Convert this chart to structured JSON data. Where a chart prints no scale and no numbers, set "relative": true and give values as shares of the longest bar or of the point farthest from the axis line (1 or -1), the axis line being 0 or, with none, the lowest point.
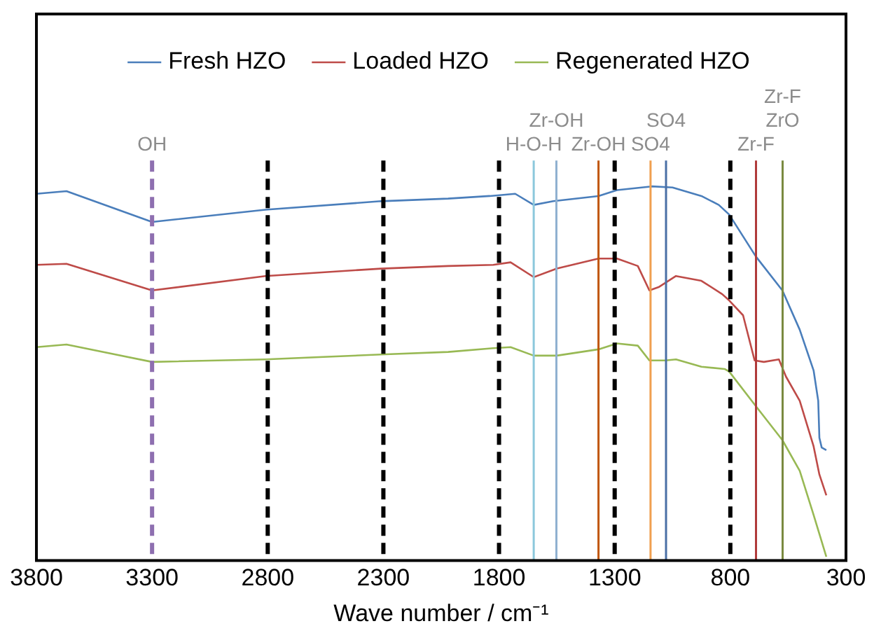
{
  "chart_data": {
    "type": "line",
    "relative": true,
    "xlabel": "Wave number / cm⁻¹",
    "xlim": [
      3800,
      300
    ],
    "xticks": [
      3800,
      3300,
      2800,
      2300,
      1800,
      1300,
      800,
      300
    ],
    "grid": false,
    "legend": "top",
    "marker": "none",
    "line_style": "solid",
    "series": [
      {
        "name": "Fresh HZO",
        "color": "#4a7ebb",
        "x": [
          3800,
          3670,
          3300,
          2810,
          2310,
          2020,
          1840,
          1730,
          1650,
          1565,
          1370,
          1290,
          1140,
          1050,
          925,
          850,
          805,
          690,
          575,
          500,
          440,
          420,
          415,
          405,
          385
        ],
        "values": [
          0.98,
          0.987,
          0.904,
          0.937,
          0.96,
          0.967,
          0.974,
          0.98,
          0.95,
          0.96,
          0.974,
          0.99,
          1.0,
          0.997,
          0.974,
          0.95,
          0.924,
          0.811,
          0.719,
          0.613,
          0.503,
          0.421,
          0.321,
          0.295,
          0.288
        ]
      },
      {
        "name": "Loaded HZO",
        "color": "#be4b48",
        "x": [
          3800,
          3670,
          3300,
          2810,
          2310,
          2020,
          1825,
          1750,
          1650,
          1550,
          1370,
          1290,
          1200,
          1150,
          1110,
          1035,
          925,
          835,
          805,
          745,
          695,
          655,
          590,
          560,
          500,
          440,
          415,
          385
        ],
        "values": [
          0.788,
          0.791,
          0.719,
          0.758,
          0.778,
          0.785,
          0.788,
          0.795,
          0.755,
          0.778,
          0.805,
          0.805,
          0.785,
          0.719,
          0.728,
          0.758,
          0.745,
          0.709,
          0.692,
          0.652,
          0.53,
          0.526,
          0.533,
          0.487,
          0.421,
          0.298,
          0.222,
          0.166
        ]
      },
      {
        "name": "Regenerated HZO",
        "color": "#98b954",
        "x": [
          3800,
          3670,
          3300,
          2810,
          2310,
          2020,
          1825,
          1750,
          1650,
          1550,
          1370,
          1290,
          1200,
          1150,
          1080,
          1035,
          925,
          825,
          805,
          695,
          575,
          500,
          440,
          385
        ],
        "values": [
          0.566,
          0.573,
          0.526,
          0.533,
          0.546,
          0.553,
          0.563,
          0.566,
          0.543,
          0.543,
          0.56,
          0.576,
          0.57,
          0.53,
          0.53,
          0.533,
          0.513,
          0.507,
          0.5,
          0.411,
          0.315,
          0.232,
          0.113,
          0
        ]
      }
    ],
    "ref_lines": [
      {
        "axis": "x",
        "value": 3300,
        "label": "OH",
        "color": "#8e6fb0",
        "line_style": "dashed"
      },
      {
        "axis": "x",
        "value": 2800,
        "color": "#000000",
        "line_style": "dashed"
      },
      {
        "axis": "x",
        "value": 2300,
        "color": "#000000",
        "line_style": "dashed"
      },
      {
        "axis": "x",
        "value": 1800,
        "color": "#000000",
        "line_style": "dashed"
      },
      {
        "axis": "x",
        "value": 1650,
        "label": "H-O-H",
        "color": "#8cc8dc",
        "line_style": "solid"
      },
      {
        "axis": "x",
        "value": 1552,
        "label": "Zr-OH",
        "color": "#8fb0d0",
        "line_style": "solid"
      },
      {
        "axis": "x",
        "value": 1370,
        "label": "Zr-OH",
        "color": "#c0560a",
        "line_style": "solid"
      },
      {
        "axis": "x",
        "value": 1300,
        "color": "#000000",
        "line_style": "dashed"
      },
      {
        "axis": "x",
        "value": 1145,
        "label": "SO4",
        "color": "#f0a050",
        "line_style": "solid"
      },
      {
        "axis": "x",
        "value": 1078,
        "label": "SO4",
        "color": "#4a6fa5",
        "line_style": "solid"
      },
      {
        "axis": "x",
        "value": 800,
        "color": "#000000",
        "line_style": "dashed"
      },
      {
        "axis": "x",
        "value": 689,
        "label": "Zr-F",
        "color": "#b03a3a",
        "line_style": "solid"
      },
      {
        "axis": "x",
        "value": 574,
        "label": "Zr-F\nZrO",
        "color": "#7a8a40",
        "line_style": "solid"
      }
    ]
  }
}
